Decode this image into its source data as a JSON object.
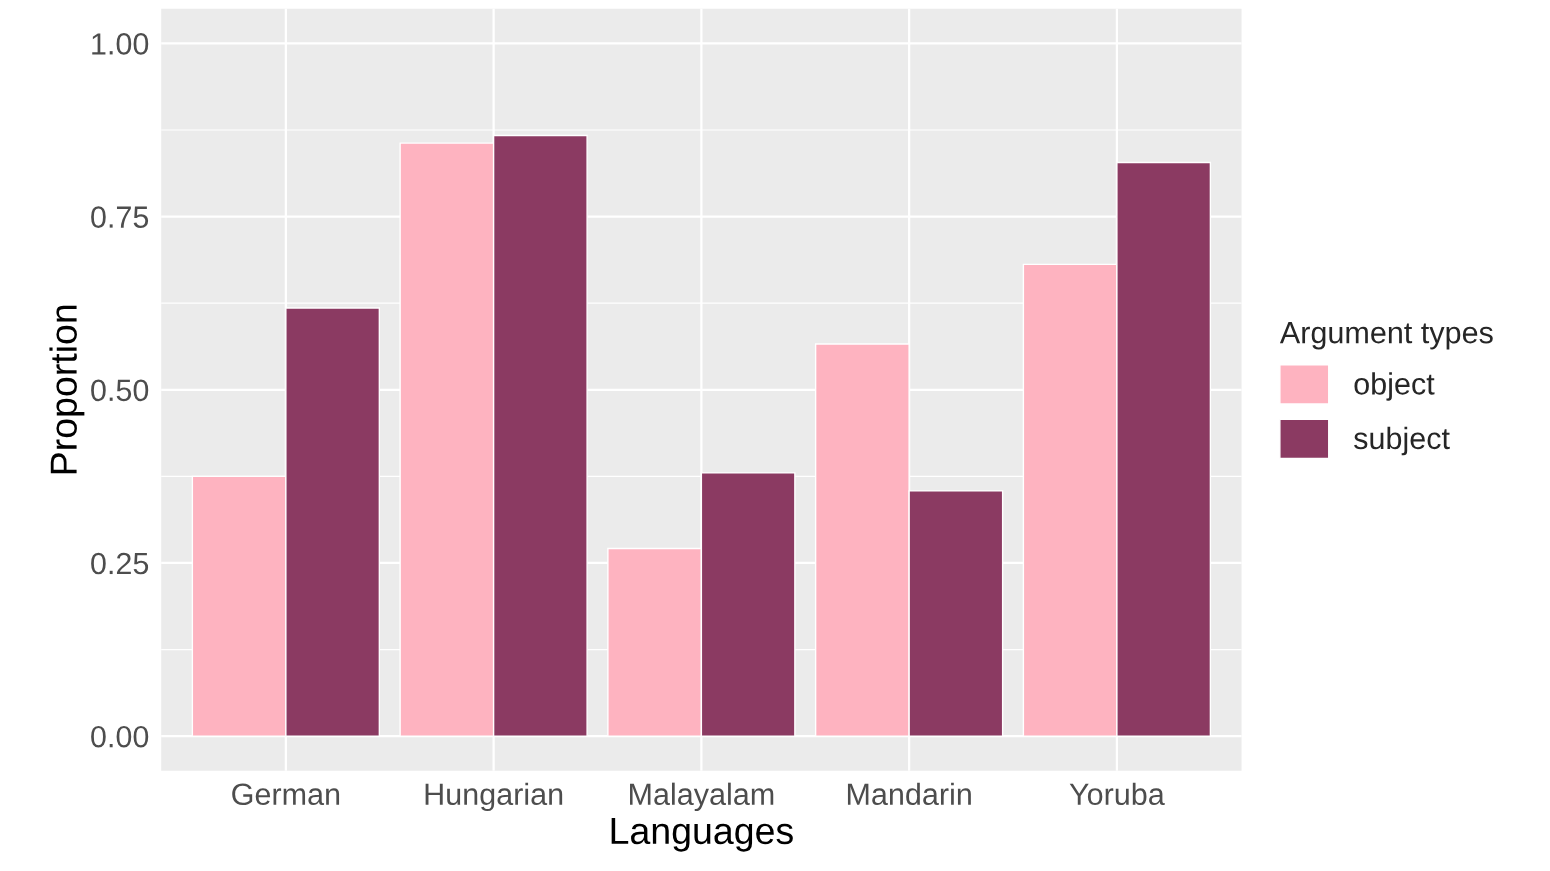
{
  "chart_data": {
    "type": "bar",
    "xlabel": "Languages",
    "ylabel": "Proportion",
    "legend_title": "Argument types",
    "categories": [
      "German",
      "Hungarian",
      "Malayalam",
      "Mandarin",
      "Yoruba"
    ],
    "series": [
      {
        "name": "object",
        "color": "#feb3c0",
        "values": [
          0.375,
          0.856,
          0.271,
          0.566,
          0.681
        ]
      },
      {
        "name": "subject",
        "color": "#8b3a62",
        "values": [
          0.618,
          0.867,
          0.38,
          0.354,
          0.828
        ]
      }
    ],
    "ylim": [
      -0.05,
      1.05
    ],
    "yticks": [
      {
        "value": 0,
        "label": "0.00"
      },
      {
        "value": 0.25,
        "label": "0.25"
      },
      {
        "value": 0.5,
        "label": "0.50"
      },
      {
        "value": 0.75,
        "label": "0.75"
      },
      {
        "value": 1,
        "label": "1.00"
      }
    ],
    "grid": true,
    "legend": "right"
  }
}
